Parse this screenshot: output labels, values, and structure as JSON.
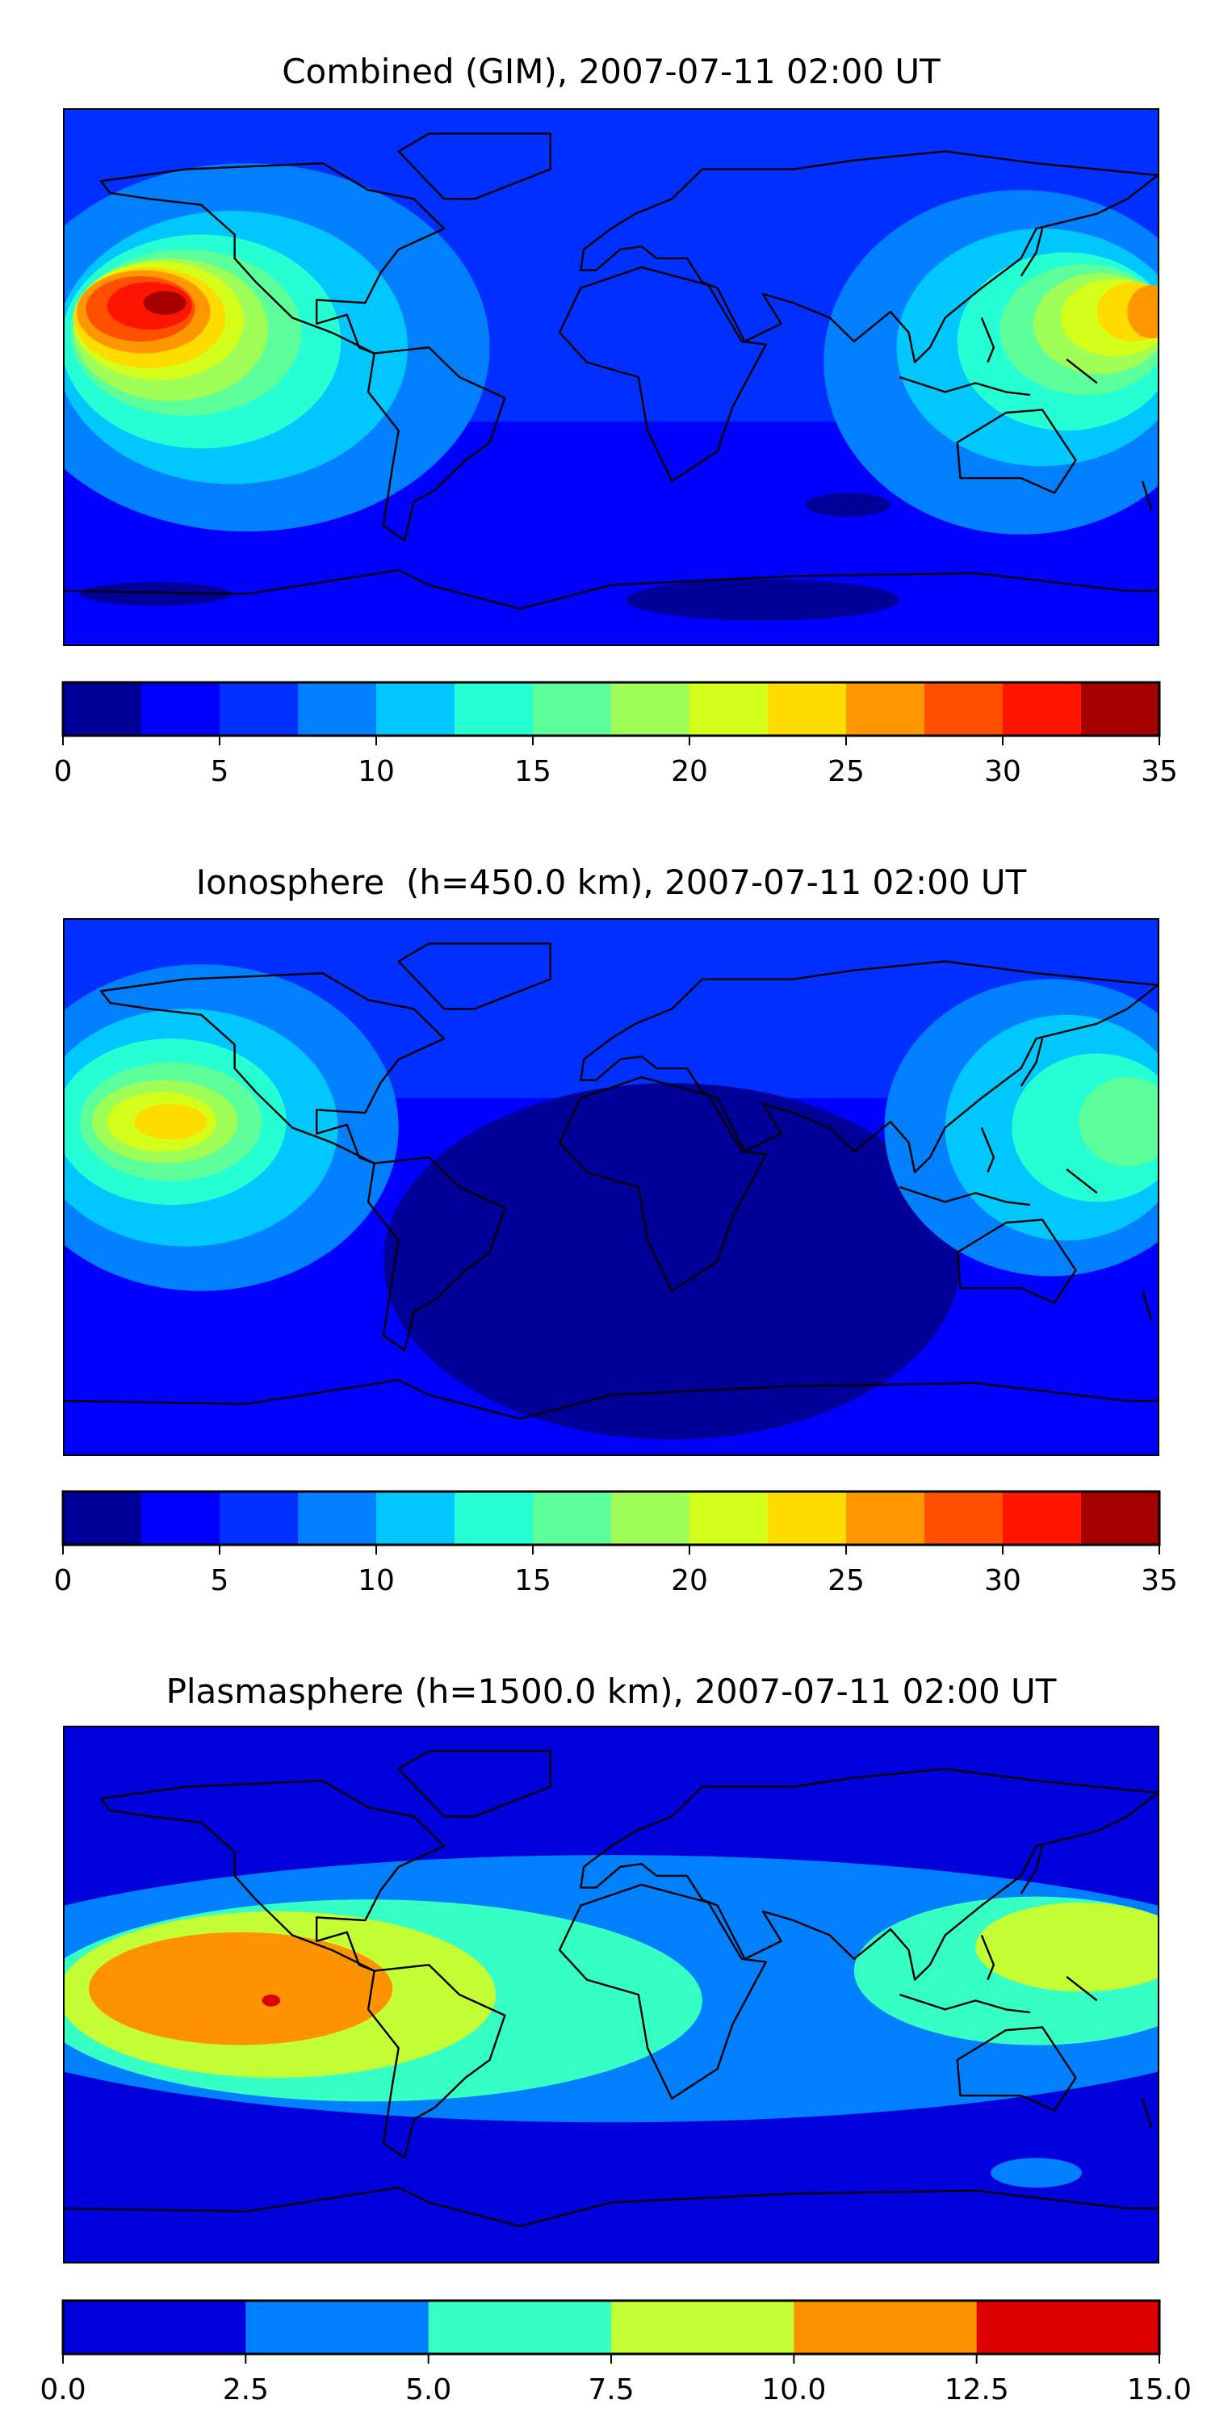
{
  "chart_data": [
    {
      "type": "heatmap",
      "subtype": "filled-contour world map",
      "title": "Combined (GIM), 2007-07-11 02:00 UT",
      "levels": [
        0,
        2.5,
        5,
        7.5,
        10,
        12.5,
        15,
        17.5,
        20,
        22.5,
        25,
        27.5,
        30,
        32.5,
        35
      ],
      "colors": [
        "#000099",
        "#0000ff",
        "#0030ff",
        "#0080ff",
        "#00c8ff",
        "#26ffd4",
        "#5cff9a",
        "#a0ff56",
        "#d4ff1a",
        "#ffdc00",
        "#ff9800",
        "#ff5000",
        "#ff1400",
        "#a40000"
      ],
      "ticks": [
        "0",
        "5",
        "10",
        "15",
        "20",
        "25",
        "30",
        "35"
      ],
      "tick_values": [
        0,
        5,
        10,
        15,
        20,
        25,
        30,
        35
      ],
      "vmin": 0,
      "vmax": 35,
      "max_region": "eastern Pacific (~lon -140, lat 15)"
    },
    {
      "type": "heatmap",
      "subtype": "filled-contour world map",
      "title": "Ionosphere  (h=450.0 km), 2007-07-11 02:00 UT",
      "levels": [
        0,
        2.5,
        5,
        7.5,
        10,
        12.5,
        15,
        17.5,
        20,
        22.5,
        25,
        27.5,
        30,
        32.5,
        35
      ],
      "colors": [
        "#000099",
        "#0000ff",
        "#0030ff",
        "#0080ff",
        "#00c8ff",
        "#26ffd4",
        "#5cff9a",
        "#a0ff56",
        "#d4ff1a",
        "#ffdc00",
        "#ff9800",
        "#ff5000",
        "#ff1400",
        "#a40000"
      ],
      "ticks": [
        "0",
        "5",
        "10",
        "15",
        "20",
        "25",
        "30",
        "35"
      ],
      "tick_values": [
        0,
        5,
        10,
        15,
        20,
        25,
        30,
        35
      ],
      "vmin": 0,
      "vmax": 35
    },
    {
      "type": "heatmap",
      "subtype": "filled-contour world map",
      "title": "Plasmasphere (h=1500.0 km), 2007-07-11 02:00 UT",
      "levels": [
        0,
        2.5,
        5,
        7.5,
        10,
        12.5,
        15
      ],
      "colors": [
        "#0000dc",
        "#0080ff",
        "#36ffc4",
        "#c4ff36",
        "#ff9400",
        "#dc0000"
      ],
      "ticks": [
        "0.0",
        "2.5",
        "5.0",
        "7.5",
        "10.0",
        "12.5",
        "15.0"
      ],
      "tick_values": [
        0,
        2.5,
        5,
        7.5,
        10,
        12.5,
        15
      ],
      "vmin": 0,
      "vmax": 15
    }
  ]
}
